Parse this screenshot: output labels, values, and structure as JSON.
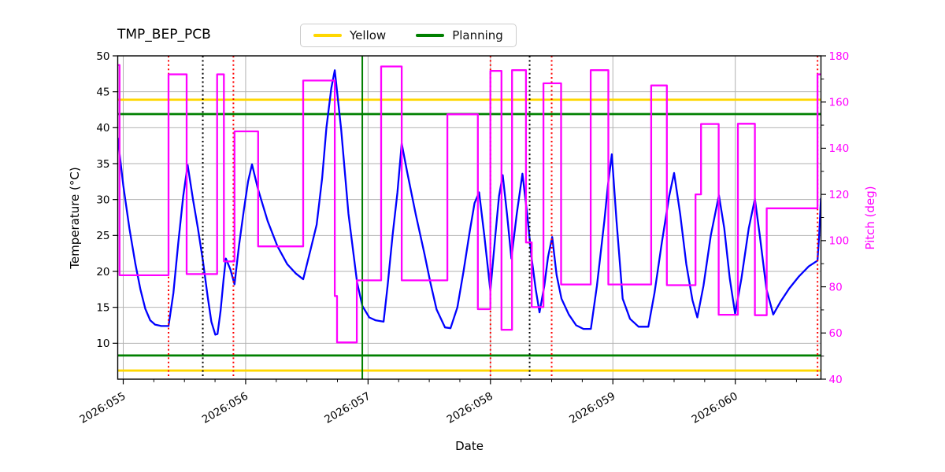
{
  "title": "TMP_BEP_PCB",
  "legend": {
    "items": [
      {
        "label": "Yellow",
        "color": "#FFD700"
      },
      {
        "label": "Planning",
        "color": "#008000"
      }
    ]
  },
  "axes": {
    "x": {
      "label": "Date",
      "major_ticks": [
        {
          "day": 55,
          "label": "2026:055"
        },
        {
          "day": 56,
          "label": "2026:056"
        },
        {
          "day": 57,
          "label": "2026:057"
        },
        {
          "day": 58,
          "label": "2026:058"
        },
        {
          "day": 59,
          "label": "2026:059"
        },
        {
          "day": 60,
          "label": "2026:060"
        }
      ],
      "minor_step": 0.25
    },
    "y_left": {
      "label": "Temperature (°C)",
      "ticks": [
        10,
        15,
        20,
        25,
        30,
        35,
        40,
        45,
        50
      ],
      "color": "#000000"
    },
    "y_right": {
      "label": "Pitch (deg)",
      "ticks": [
        40,
        60,
        80,
        100,
        120,
        140,
        160,
        180
      ],
      "minor_ticks": [
        50,
        70,
        90,
        110,
        130,
        150,
        170
      ],
      "color": "#FF00FF"
    }
  },
  "chart_data": {
    "type": "line",
    "title": "TMP_BEP_PCB",
    "xlabel": "Date",
    "ylabel_left": "Temperature (°C)",
    "ylabel_right": "Pitch (deg)",
    "x_range": [
      54.955,
      60.7
    ],
    "y_left_range": [
      5,
      50
    ],
    "y_right_range": [
      40,
      180
    ],
    "grid_color": "#b2b2b2",
    "series": [
      {
        "name": "temperature",
        "axis": "left",
        "color": "#0000FF",
        "points": [
          [
            54.955,
            38.6
          ],
          [
            55.0,
            32
          ],
          [
            55.05,
            26
          ],
          [
            55.1,
            21
          ],
          [
            55.14,
            17.5
          ],
          [
            55.18,
            14.8
          ],
          [
            55.22,
            13.2
          ],
          [
            55.26,
            12.6
          ],
          [
            55.31,
            12.4
          ],
          [
            55.37,
            12.4
          ],
          [
            55.41,
            17
          ],
          [
            55.45,
            24
          ],
          [
            55.49,
            30.5
          ],
          [
            55.526,
            34.8
          ],
          [
            55.57,
            30
          ],
          [
            55.61,
            26
          ],
          [
            55.65,
            21.6
          ],
          [
            55.69,
            16.5
          ],
          [
            55.72,
            13
          ],
          [
            55.752,
            11.2
          ],
          [
            55.77,
            11.3
          ],
          [
            55.795,
            14.5
          ],
          [
            55.82,
            19
          ],
          [
            55.838,
            21.8
          ],
          [
            55.875,
            20.3
          ],
          [
            55.909,
            18.2
          ],
          [
            55.945,
            23.5
          ],
          [
            55.985,
            28.5
          ],
          [
            56.02,
            32.5
          ],
          [
            56.052,
            34.9
          ],
          [
            56.1,
            31.5
          ],
          [
            56.18,
            27
          ],
          [
            56.26,
            23.5
          ],
          [
            56.34,
            21
          ],
          [
            56.41,
            19.7
          ],
          [
            56.47,
            18.9
          ],
          [
            56.53,
            23
          ],
          [
            56.58,
            26.5
          ],
          [
            56.625,
            33
          ],
          [
            56.66,
            40
          ],
          [
            56.7,
            45.5
          ],
          [
            56.728,
            48
          ],
          [
            56.78,
            39.8
          ],
          [
            56.84,
            28
          ],
          [
            56.91,
            18.5
          ],
          [
            56.953,
            15.2
          ],
          [
            57.01,
            13.6
          ],
          [
            57.06,
            13.2
          ],
          [
            57.127,
            13.0
          ],
          [
            57.16,
            18
          ],
          [
            57.2,
            25
          ],
          [
            57.24,
            31
          ],
          [
            57.275,
            37.8
          ],
          [
            57.32,
            33.8
          ],
          [
            57.39,
            27.9
          ],
          [
            57.46,
            22.5
          ],
          [
            57.51,
            18.4
          ],
          [
            57.56,
            14.7
          ],
          [
            57.629,
            12.2
          ],
          [
            57.674,
            12.1
          ],
          [
            57.73,
            15
          ],
          [
            57.78,
            20
          ],
          [
            57.83,
            25.5
          ],
          [
            57.87,
            29.5
          ],
          [
            57.907,
            31
          ],
          [
            57.95,
            25
          ],
          [
            57.999,
            17.3
          ],
          [
            58.04,
            25
          ],
          [
            58.07,
            30.5
          ],
          [
            58.1,
            33.4
          ],
          [
            58.135,
            28
          ],
          [
            58.171,
            21.8
          ],
          [
            58.215,
            28
          ],
          [
            58.261,
            33.6
          ],
          [
            58.3,
            28
          ],
          [
            58.335,
            22
          ],
          [
            58.37,
            17.5
          ],
          [
            58.401,
            14.3
          ],
          [
            58.44,
            18
          ],
          [
            58.47,
            22
          ],
          [
            58.504,
            24.8
          ],
          [
            58.54,
            19.5
          ],
          [
            58.58,
            16.2
          ],
          [
            58.64,
            14
          ],
          [
            58.7,
            12.5
          ],
          [
            58.76,
            12
          ],
          [
            58.82,
            12
          ],
          [
            58.87,
            18
          ],
          [
            58.93,
            27
          ],
          [
            58.96,
            32
          ],
          [
            58.991,
            36.3
          ],
          [
            59.03,
            27
          ],
          [
            59.08,
            16.2
          ],
          [
            59.14,
            13.4
          ],
          [
            59.21,
            12.3
          ],
          [
            59.29,
            12.3
          ],
          [
            59.34,
            17
          ],
          [
            59.4,
            24
          ],
          [
            59.46,
            30.5
          ],
          [
            59.5,
            33.7
          ],
          [
            59.55,
            28
          ],
          [
            59.6,
            21
          ],
          [
            59.65,
            16
          ],
          [
            59.69,
            13.6
          ],
          [
            59.74,
            18
          ],
          [
            59.8,
            25
          ],
          [
            59.866,
            30.6
          ],
          [
            59.91,
            26
          ],
          [
            59.955,
            19
          ],
          [
            59.999,
            14.1
          ],
          [
            60.05,
            19
          ],
          [
            60.11,
            26
          ],
          [
            60.16,
            30.1
          ],
          [
            60.2,
            25
          ],
          [
            60.255,
            17.5
          ],
          [
            60.31,
            14
          ],
          [
            60.37,
            15.8
          ],
          [
            60.44,
            17.6
          ],
          [
            60.52,
            19.3
          ],
          [
            60.6,
            20.7
          ],
          [
            60.672,
            21.5
          ],
          [
            60.685,
            25
          ],
          [
            60.7,
            30.2
          ]
        ]
      },
      {
        "name": "pitch",
        "axis": "right",
        "color": "#FF00FF",
        "points": [
          [
            54.955,
            176
          ],
          [
            54.97,
            176
          ],
          [
            54.97,
            85
          ],
          [
            55.37,
            85
          ],
          [
            55.37,
            172
          ],
          [
            55.518,
            172
          ],
          [
            55.518,
            85.5
          ],
          [
            55.767,
            85.5
          ],
          [
            55.767,
            172
          ],
          [
            55.822,
            172
          ],
          [
            55.822,
            91
          ],
          [
            55.909,
            91
          ],
          [
            55.909,
            147.3
          ],
          [
            56.102,
            147.3
          ],
          [
            56.102,
            97.5
          ],
          [
            56.47,
            97.5
          ],
          [
            56.47,
            169.3
          ],
          [
            56.728,
            169.3
          ],
          [
            56.728,
            76
          ],
          [
            56.747,
            76
          ],
          [
            56.747,
            55.9
          ],
          [
            56.908,
            55.9
          ],
          [
            56.908,
            82.8
          ],
          [
            57.107,
            82.8
          ],
          [
            57.107,
            175.4
          ],
          [
            57.275,
            175.4
          ],
          [
            57.275,
            82.8
          ],
          [
            57.648,
            82.8
          ],
          [
            57.648,
            154.7
          ],
          [
            57.897,
            154.7
          ],
          [
            57.897,
            70.3
          ],
          [
            57.999,
            70.3
          ],
          [
            57.999,
            173.5
          ],
          [
            58.09,
            173.5
          ],
          [
            58.09,
            61.4
          ],
          [
            58.176,
            61.4
          ],
          [
            58.176,
            173.8
          ],
          [
            58.29,
            173.8
          ],
          [
            58.29,
            99.2
          ],
          [
            58.337,
            99.2
          ],
          [
            58.337,
            71.2
          ],
          [
            58.433,
            71.2
          ],
          [
            58.433,
            168.1
          ],
          [
            58.577,
            168.1
          ],
          [
            58.577,
            81
          ],
          [
            58.819,
            81
          ],
          [
            58.819,
            173.8
          ],
          [
            58.963,
            173.8
          ],
          [
            58.963,
            81
          ],
          [
            59.313,
            81
          ],
          [
            59.313,
            167.2
          ],
          [
            59.441,
            167.2
          ],
          [
            59.441,
            80.7
          ],
          [
            59.675,
            80.7
          ],
          [
            59.675,
            120
          ],
          [
            59.72,
            120
          ],
          [
            59.72,
            150.5
          ],
          [
            59.864,
            150.5
          ],
          [
            59.864,
            67.9
          ],
          [
            60.021,
            67.9
          ],
          [
            60.021,
            150.6
          ],
          [
            60.16,
            150.6
          ],
          [
            60.16,
            67.7
          ],
          [
            60.257,
            67.7
          ],
          [
            60.257,
            114
          ],
          [
            60.672,
            114
          ],
          [
            60.672,
            172
          ],
          [
            60.7,
            172
          ]
        ]
      }
    ],
    "limit_lines": [
      {
        "name": "yellow-high",
        "value": 43.9,
        "color": "#FFD700"
      },
      {
        "name": "planning-high",
        "value": 41.9,
        "color": "#008000"
      },
      {
        "name": "planning-low",
        "value": 8.3,
        "color": "#008000"
      },
      {
        "name": "yellow-low",
        "value": 6.2,
        "color": "#FFD700"
      }
    ],
    "event_lines": [
      {
        "day": 55.37,
        "color": "#FF0000",
        "style": "dotted"
      },
      {
        "day": 55.65,
        "color": "#000000",
        "style": "dotted"
      },
      {
        "day": 55.9,
        "color": "#FF0000",
        "style": "dotted"
      },
      {
        "day": 56.953,
        "color": "#008000",
        "style": "solid"
      },
      {
        "day": 58.0,
        "color": "#FF0000",
        "style": "dotted"
      },
      {
        "day": 58.32,
        "color": "#000000",
        "style": "dotted"
      },
      {
        "day": 58.5,
        "color": "#FF0000",
        "style": "dotted"
      },
      {
        "day": 60.672,
        "color": "#FF0000",
        "style": "dotted"
      }
    ],
    "legend_position": "top-center",
    "grid": true
  }
}
